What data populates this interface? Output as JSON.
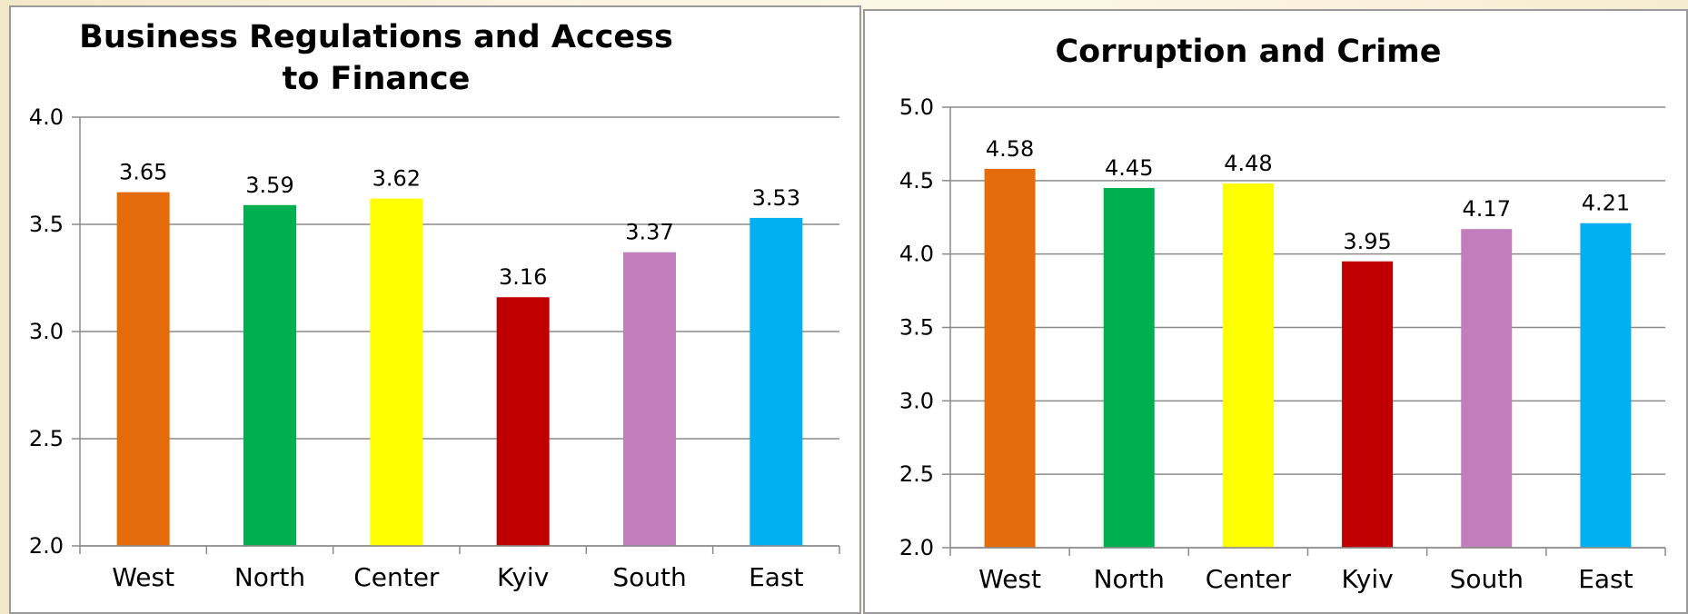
{
  "chart_data": [
    {
      "type": "bar",
      "title": "Business Regulations and Access to Finance",
      "categories": [
        "West",
        "North",
        "Center",
        "Kyiv",
        "South",
        "East"
      ],
      "values": [
        3.65,
        3.59,
        3.62,
        3.16,
        3.37,
        3.53
      ],
      "value_labels": [
        "3.65",
        "3.59",
        "3.62",
        "3.16",
        "3.37",
        "3.53"
      ],
      "colors": [
        "#e46c0a",
        "#00b050",
        "#ffff00",
        "#c00000",
        "#c27dbd",
        "#00b0f0"
      ],
      "ylim": [
        2.0,
        4.0
      ],
      "yticks": [
        "2.0",
        "2.5",
        "3.0",
        "3.5",
        "4.0"
      ],
      "grid": true,
      "legend": "none"
    },
    {
      "type": "bar",
      "title": "Corruption and Crime",
      "categories": [
        "West",
        "North",
        "Center",
        "Kyiv",
        "South",
        "East"
      ],
      "values": [
        4.58,
        4.45,
        4.48,
        3.95,
        4.17,
        4.21
      ],
      "value_labels": [
        "4.58",
        "4.45",
        "4.48",
        "3.95",
        "4.17",
        "4.21"
      ],
      "colors": [
        "#e46c0a",
        "#00b050",
        "#ffff00",
        "#c00000",
        "#c27dbd",
        "#00b0f0"
      ],
      "ylim": [
        2.0,
        5.0
      ],
      "yticks": [
        "2.0",
        "2.5",
        "3.0",
        "3.5",
        "4.0",
        "4.5",
        "5.0"
      ],
      "grid": true,
      "legend": "none"
    }
  ]
}
